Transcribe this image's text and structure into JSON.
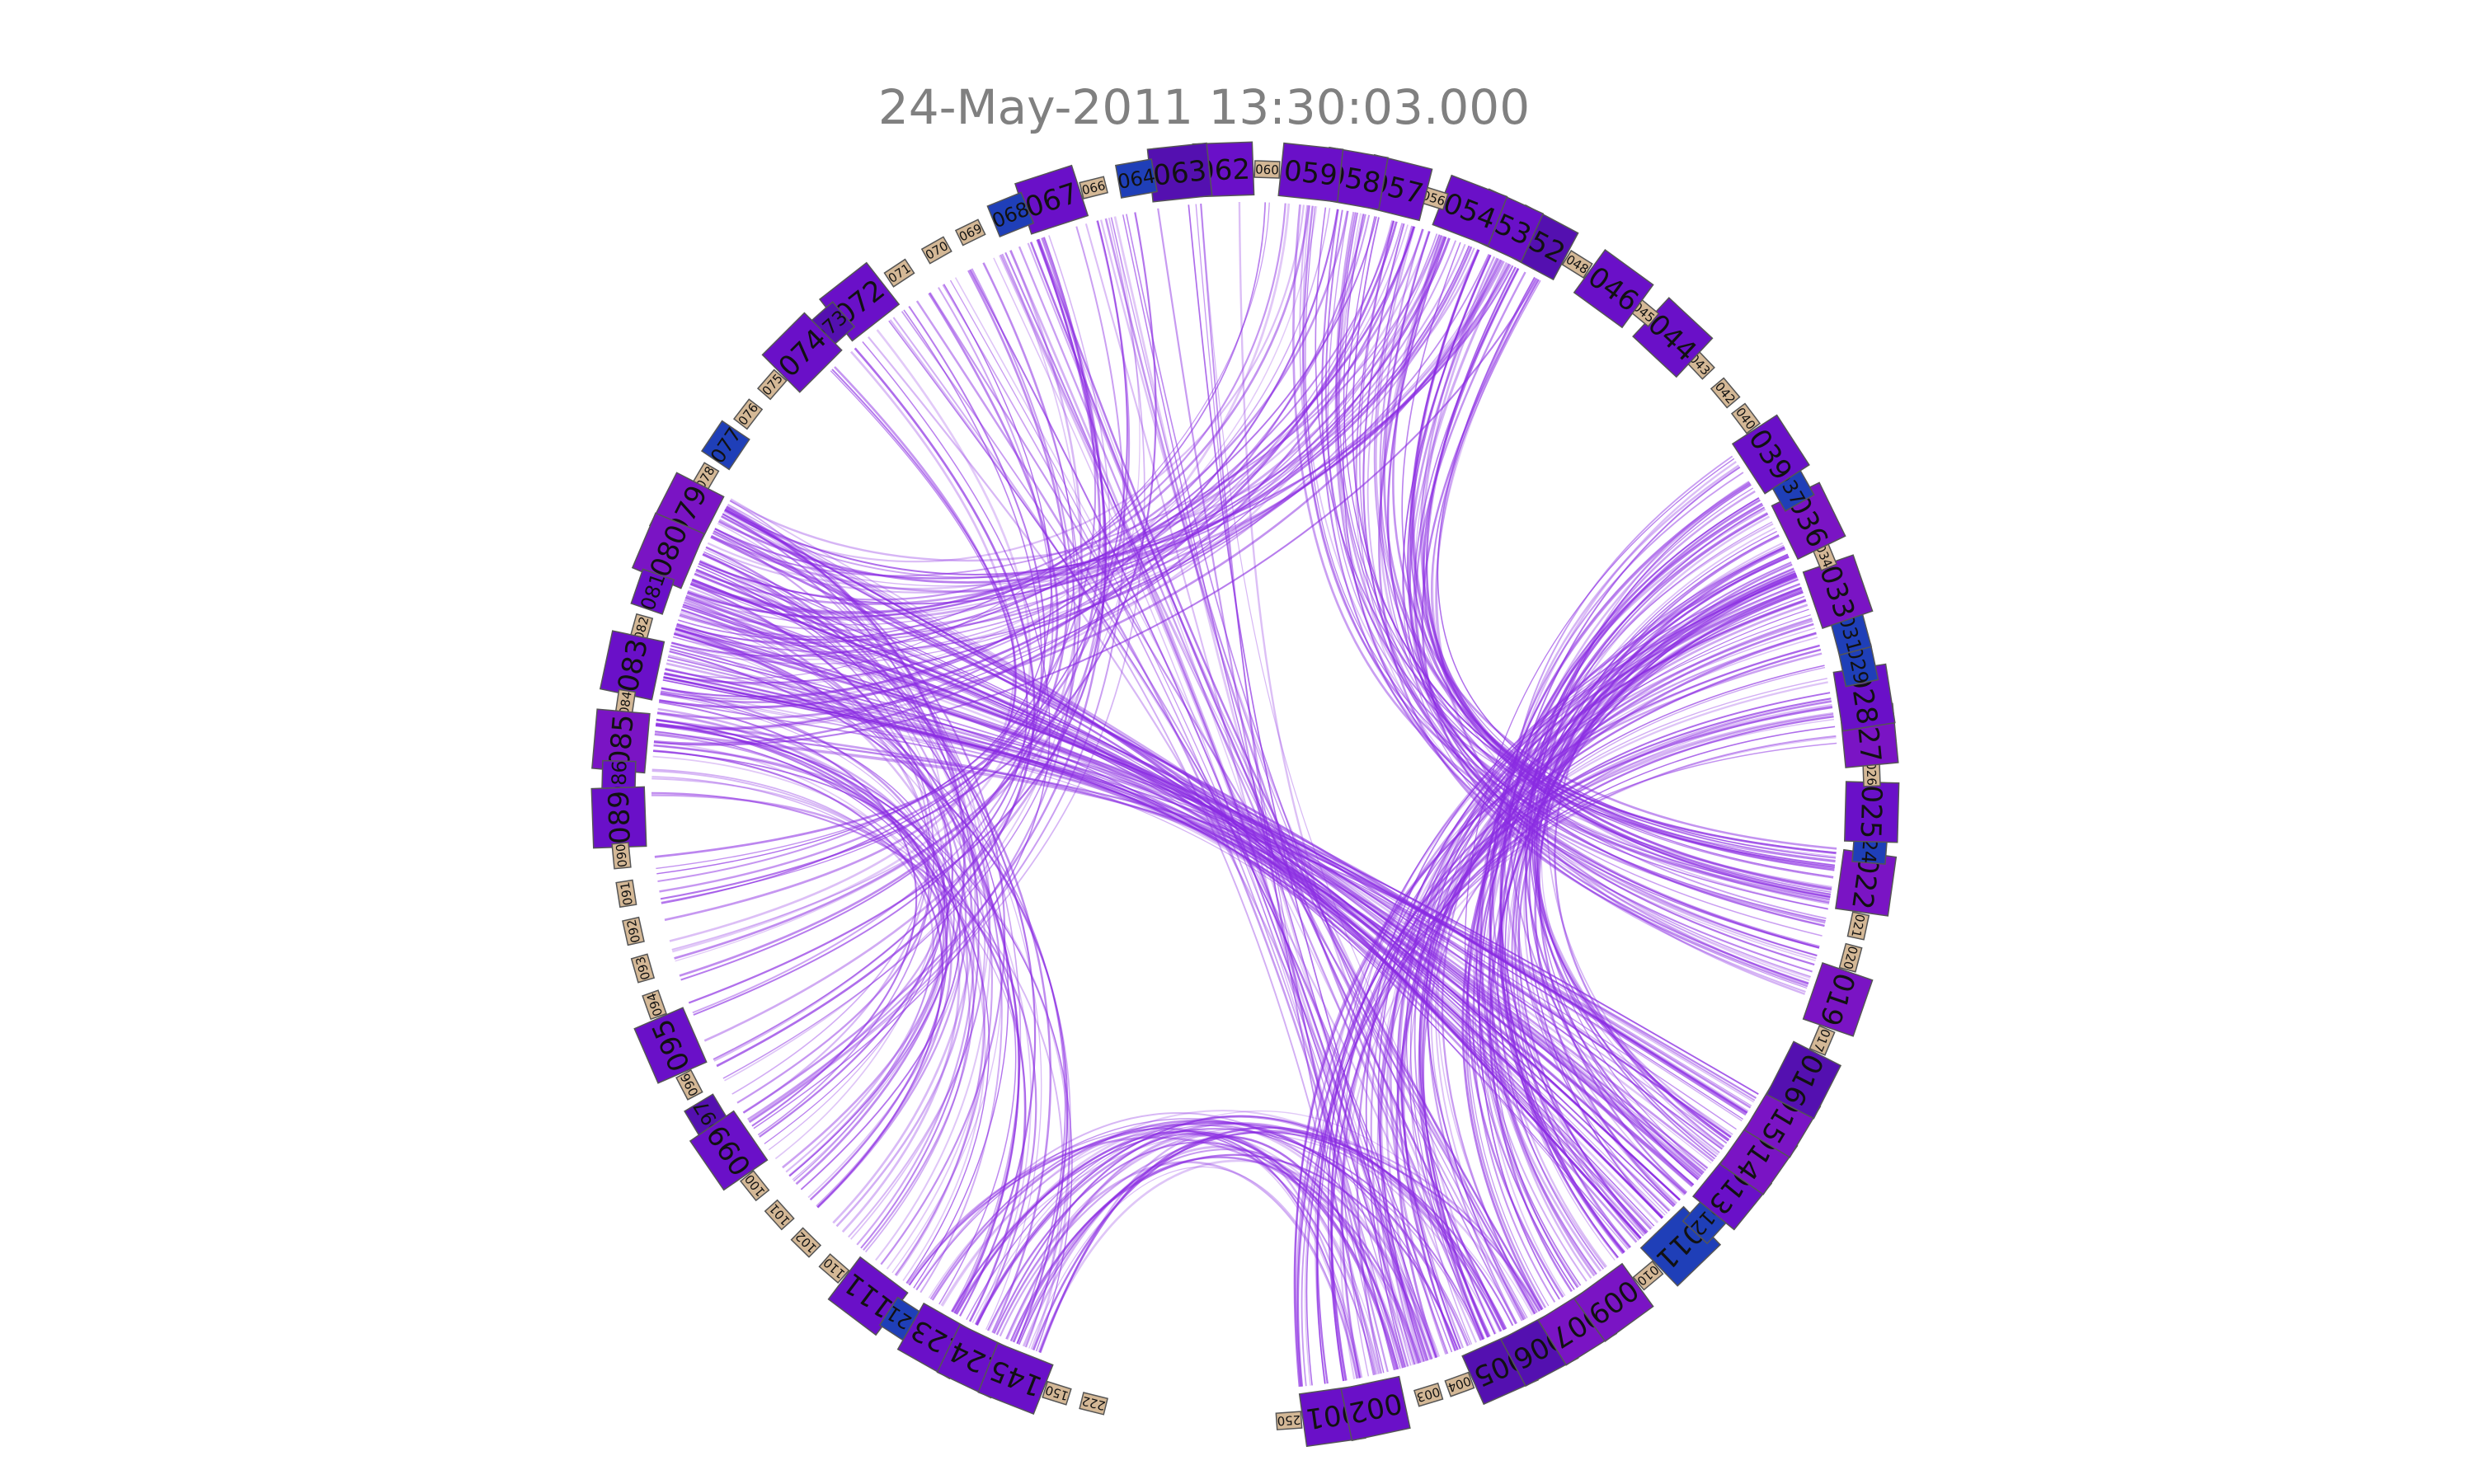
{
  "title": "24-May-2011 13:30:03.000",
  "colors": {
    "violet": "#6a10c8",
    "deep_violet": "#5410b0",
    "purple": "#7a14c4",
    "blue": "#1f3fb8",
    "tan": "#d4b896",
    "edge": "#8a2be2"
  },
  "nodes": [
    {
      "label": "250",
      "angle": -86,
      "size": "small",
      "color": "tan"
    },
    {
      "label": "001",
      "angle": -82,
      "size": "large",
      "color": "violet"
    },
    {
      "label": "002",
      "angle": -78,
      "size": "large",
      "color": "violet"
    },
    {
      "label": "003",
      "angle": -73,
      "size": "small",
      "color": "tan"
    },
    {
      "label": "004",
      "angle": -70,
      "size": "small",
      "color": "tan"
    },
    {
      "label": "005",
      "angle": -66,
      "size": "large",
      "color": "deep_violet"
    },
    {
      "label": "006",
      "angle": -62,
      "size": "large",
      "color": "deep_violet"
    },
    {
      "label": "007",
      "angle": -58,
      "size": "large",
      "color": "purple"
    },
    {
      "label": "009",
      "angle": -54,
      "size": "large",
      "color": "purple"
    },
    {
      "label": "010",
      "angle": -50,
      "size": "small",
      "color": "tan"
    },
    {
      "label": "011",
      "angle": -46,
      "size": "large",
      "color": "blue"
    },
    {
      "label": "012",
      "angle": -42.5,
      "size": "medium",
      "color": "blue"
    },
    {
      "label": "013",
      "angle": -39,
      "size": "large",
      "color": "violet"
    },
    {
      "label": "014",
      "angle": -35,
      "size": "large",
      "color": "purple"
    },
    {
      "label": "015",
      "angle": -31,
      "size": "large",
      "color": "purple"
    },
    {
      "label": "016",
      "angle": -27,
      "size": "large",
      "color": "deep_violet"
    },
    {
      "label": "017",
      "angle": -23,
      "size": "small",
      "color": "tan"
    },
    {
      "label": "019",
      "angle": -19,
      "size": "large",
      "color": "purple"
    },
    {
      "label": "020",
      "angle": -15,
      "size": "small",
      "color": "tan"
    },
    {
      "label": "021",
      "angle": -12,
      "size": "small",
      "color": "tan"
    },
    {
      "label": "022",
      "angle": -8,
      "size": "large",
      "color": "purple"
    },
    {
      "label": "024",
      "angle": -4.5,
      "size": "medium",
      "color": "blue"
    },
    {
      "label": "025",
      "angle": -1.5,
      "size": "large",
      "color": "violet"
    },
    {
      "label": "026",
      "angle": 2,
      "size": "small",
      "color": "tan"
    },
    {
      "label": "027",
      "angle": 5.5,
      "size": "large",
      "color": "purple"
    },
    {
      "label": "028",
      "angle": 9,
      "size": "large",
      "color": "violet"
    },
    {
      "label": "029",
      "angle": 12,
      "size": "medium",
      "color": "blue"
    },
    {
      "label": "031",
      "angle": 15,
      "size": "medium",
      "color": "blue"
    },
    {
      "label": "033",
      "angle": 19,
      "size": "large",
      "color": "purple"
    },
    {
      "label": "034",
      "angle": 22.5,
      "size": "small",
      "color": "tan"
    },
    {
      "label": "036",
      "angle": 26,
      "size": "large",
      "color": "purple"
    },
    {
      "label": "037",
      "angle": 29.5,
      "size": "medium",
      "color": "blue"
    },
    {
      "label": "039",
      "angle": 33,
      "size": "large",
      "color": "violet"
    },
    {
      "label": "040",
      "angle": 37,
      "size": "small",
      "color": "tan"
    },
    {
      "label": "042",
      "angle": 40,
      "size": "small",
      "color": "tan"
    },
    {
      "label": "043",
      "angle": 43.5,
      "size": "small",
      "color": "tan"
    },
    {
      "label": "044",
      "angle": 47,
      "size": "large",
      "color": "violet"
    },
    {
      "label": "045",
      "angle": 50.5,
      "size": "small",
      "color": "tan"
    },
    {
      "label": "046",
      "angle": 54,
      "size": "large",
      "color": "violet"
    },
    {
      "label": "048",
      "angle": 58,
      "size": "small",
      "color": "tan"
    },
    {
      "label": "052",
      "angle": 62,
      "size": "large",
      "color": "deep_violet"
    },
    {
      "label": "053",
      "angle": 65.5,
      "size": "large",
      "color": "violet"
    },
    {
      "label": "054",
      "angle": 69,
      "size": "large",
      "color": "violet"
    },
    {
      "label": "056",
      "angle": 72.5,
      "size": "small",
      "color": "tan"
    },
    {
      "label": "057",
      "angle": 76,
      "size": "large",
      "color": "violet"
    },
    {
      "label": "058",
      "angle": 80,
      "size": "large",
      "color": "violet"
    },
    {
      "label": "059",
      "angle": 84,
      "size": "large",
      "color": "violet"
    },
    {
      "label": "060",
      "angle": 88,
      "size": "small",
      "color": "tan"
    },
    {
      "label": "062",
      "angle": 92,
      "size": "large",
      "color": "violet"
    },
    {
      "label": "063",
      "angle": 96,
      "size": "large",
      "color": "deep_violet"
    },
    {
      "label": "064",
      "angle": 100,
      "size": "medium",
      "color": "blue"
    },
    {
      "label": "066",
      "angle": 104,
      "size": "small",
      "color": "tan"
    },
    {
      "label": "067",
      "angle": 108,
      "size": "large",
      "color": "violet"
    },
    {
      "label": "068",
      "angle": 112,
      "size": "medium",
      "color": "blue"
    },
    {
      "label": "069",
      "angle": 116,
      "size": "small",
      "color": "tan"
    },
    {
      "label": "070",
      "angle": 119.5,
      "size": "small",
      "color": "tan"
    },
    {
      "label": "071",
      "angle": 123.5,
      "size": "small",
      "color": "tan"
    },
    {
      "label": "072",
      "angle": 128,
      "size": "large",
      "color": "violet"
    },
    {
      "label": "073",
      "angle": 131.5,
      "size": "medium",
      "color": "deep_violet"
    },
    {
      "label": "074",
      "angle": 135,
      "size": "large",
      "color": "violet"
    },
    {
      "label": "075",
      "angle": 139,
      "size": "small",
      "color": "tan"
    },
    {
      "label": "076",
      "angle": 142.5,
      "size": "small",
      "color": "tan"
    },
    {
      "label": "077",
      "angle": 146,
      "size": "medium",
      "color": "blue"
    },
    {
      "label": "078",
      "angle": 149.5,
      "size": "small",
      "color": "tan"
    },
    {
      "label": "079",
      "angle": 153,
      "size": "large",
      "color": "purple"
    },
    {
      "label": "080",
      "angle": 157,
      "size": "large",
      "color": "purple"
    },
    {
      "label": "081",
      "angle": 161,
      "size": "medium",
      "color": "violet"
    },
    {
      "label": "082",
      "angle": 164.5,
      "size": "small",
      "color": "tan"
    },
    {
      "label": "083",
      "angle": 168,
      "size": "large",
      "color": "violet"
    },
    {
      "label": "084",
      "angle": 171.5,
      "size": "small",
      "color": "tan"
    },
    {
      "label": "085",
      "angle": 175,
      "size": "large",
      "color": "purple"
    },
    {
      "label": "086",
      "angle": 178.5,
      "size": "medium",
      "color": "violet"
    },
    {
      "label": "089",
      "angle": 182,
      "size": "large",
      "color": "violet"
    },
    {
      "label": "090",
      "angle": 185.5,
      "size": "small",
      "color": "tan"
    },
    {
      "label": "091",
      "angle": 189,
      "size": "small",
      "color": "tan"
    },
    {
      "label": "092",
      "angle": 192.5,
      "size": "small",
      "color": "tan"
    },
    {
      "label": "093",
      "angle": 196,
      "size": "small",
      "color": "tan"
    },
    {
      "label": "094",
      "angle": 199.5,
      "size": "small",
      "color": "tan"
    },
    {
      "label": "095",
      "angle": 203.5,
      "size": "large",
      "color": "violet"
    },
    {
      "label": "096",
      "angle": 207.5,
      "size": "small",
      "color": "tan"
    },
    {
      "label": "097",
      "angle": 211,
      "size": "medium",
      "color": "deep_violet"
    },
    {
      "label": "099",
      "angle": 214.5,
      "size": "large",
      "color": "violet"
    },
    {
      "label": "100",
      "angle": 218.5,
      "size": "small",
      "color": "tan"
    },
    {
      "label": "101",
      "angle": 222,
      "size": "small",
      "color": "tan"
    },
    {
      "label": "102",
      "angle": 225.5,
      "size": "small",
      "color": "tan"
    },
    {
      "label": "110",
      "angle": 229,
      "size": "small",
      "color": "tan"
    },
    {
      "label": "111",
      "angle": 233,
      "size": "large",
      "color": "violet"
    },
    {
      "label": "121",
      "angle": 237,
      "size": "medium",
      "color": "blue"
    },
    {
      "label": "123",
      "angle": 240.5,
      "size": "large",
      "color": "violet"
    },
    {
      "label": "124",
      "angle": 244.5,
      "size": "large",
      "color": "violet"
    },
    {
      "label": "145",
      "angle": 248.5,
      "size": "large",
      "color": "violet"
    },
    {
      "label": "150",
      "angle": 252.5,
      "size": "small",
      "color": "tan"
    },
    {
      "label": "222",
      "angle": 256,
      "size": "small",
      "color": "tan"
    }
  ]
}
